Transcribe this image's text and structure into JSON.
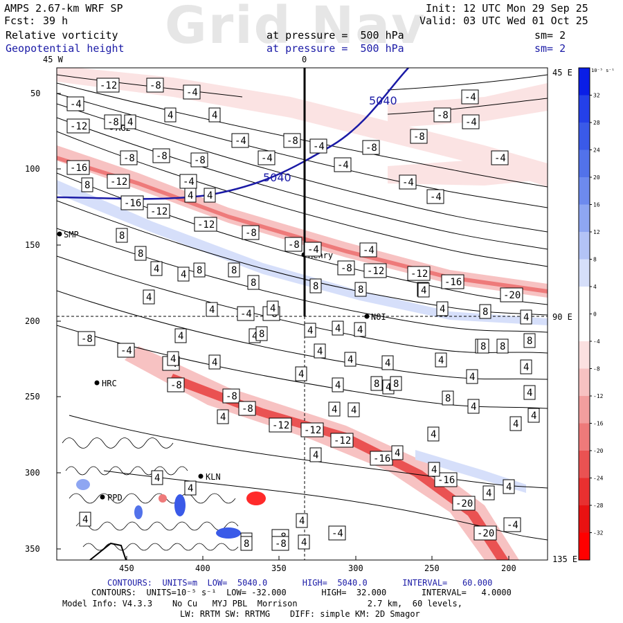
{
  "header": {
    "model": "AMPS 2.67-km WRF SP",
    "init": "Init: 12 UTC Mon 29 Sep 25",
    "fcst_label": "Fcst:",
    "fcst_value": "39 h",
    "valid": "Valid: 03 UTC Wed 01 Oct 25",
    "field1": "Relative vorticity",
    "field1_level": "at pressure =  500 hPa",
    "field1_sm": "sm= 2",
    "field2": "Geopotential height",
    "field2_level": "at pressure =  500 hPa",
    "field2_sm": "sm= 2",
    "watermark": "Grid Nav"
  },
  "axes": {
    "top_left": "45 W",
    "top_mid": "0",
    "right_top": "45 E",
    "right_mid": "90 E",
    "right_bottom": "135 E",
    "y_ticks": [
      "50",
      "100",
      "150",
      "200",
      "250",
      "300",
      "350"
    ],
    "x_ticks": [
      "450",
      "400",
      "350",
      "300",
      "250",
      "200"
    ]
  },
  "colorbar": {
    "unit": "10⁻⁵ s⁻¹",
    "labels": [
      "32",
      "28",
      "24",
      "20",
      "16",
      "12",
      "8",
      "4",
      "0",
      "-4",
      "-8",
      "-12",
      "-16",
      "-20",
      "-24",
      "-28",
      "-32"
    ],
    "colors": [
      "#0a1ee6",
      "#2440e8",
      "#3a5ae8",
      "#5272ea",
      "#6d8aee",
      "#8ea6f2",
      "#b3c3f6",
      "#d6dffa",
      "#ffffff",
      "#ffffff",
      "#fbe0e0",
      "#f7c2c2",
      "#f29e9e",
      "#ee7a7a",
      "#ea5252",
      "#e83030",
      "#e81212",
      "#ff0000"
    ]
  },
  "stations": [
    "AG2",
    "SMP",
    "Henry",
    "NOI",
    "HRC",
    "KLN",
    "PPD"
  ],
  "height_labels": [
    "5040",
    "5040"
  ],
  "vort_labels": {
    "neg4": [
      "-4",
      "-4",
      "-4",
      "-4",
      "-4",
      "-4",
      "-4",
      "-4",
      "-4",
      "-4",
      "-4",
      "-4",
      "-4",
      "-4",
      "-4",
      "-4",
      "-4",
      "-4",
      "-4"
    ],
    "neg8": [
      "-8",
      "-8",
      "-8",
      "-8",
      "-8",
      "-8",
      "-8",
      "-8",
      "-8",
      "-8",
      "-8",
      "-8",
      "-8",
      "-8",
      "-8",
      "-8",
      "-8",
      "-8",
      "-8"
    ],
    "neg12": [
      "-12",
      "-12",
      "-12",
      "-12",
      "-12",
      "-12",
      "-12",
      "-12",
      "-12",
      "-12"
    ],
    "neg16": [
      "-16",
      "-16",
      "-16",
      "-16",
      "-16"
    ],
    "neg20": [
      "-20",
      "-20",
      "-20"
    ],
    "pos4": [
      "4",
      "4",
      "4",
      "4",
      "4",
      "4",
      "4",
      "4",
      "4",
      "4",
      "4",
      "4",
      "4",
      "4",
      "4",
      "4",
      "4",
      "4",
      "4",
      "4",
      "4",
      "4",
      "4",
      "4",
      "4",
      "4",
      "4",
      "4",
      "4",
      "4",
      "4",
      "4",
      "4",
      "4",
      "4",
      "4",
      "4",
      "4",
      "4",
      "4",
      "4",
      "4",
      "4",
      "4",
      "4",
      "4",
      "4",
      "4",
      "4"
    ],
    "pos8": [
      "8",
      "8",
      "8",
      "8",
      "8",
      "8",
      "8",
      "8",
      "8",
      "8",
      "8",
      "8",
      "8",
      "8",
      "8",
      "8",
      "8",
      "8"
    ]
  },
  "footer": {
    "contours1": "CONTOURS:  UNITS=m  LOW=  5040.0       HIGH=  5040.0       INTERVAL=   60.000",
    "contours2": "CONTOURS:  UNITS=10⁻⁵ s⁻¹  LOW= -32.000       HIGH=  32.000       INTERVAL=   4.0000",
    "model_info": "Model Info: V4.3.3    No Cu   MYJ PBL  Morrison              2.7 km,  60 levels,",
    "model_info2": "LW: RRTM SW: RRTMG    DIFF: simple KM: 2D Smagor"
  }
}
